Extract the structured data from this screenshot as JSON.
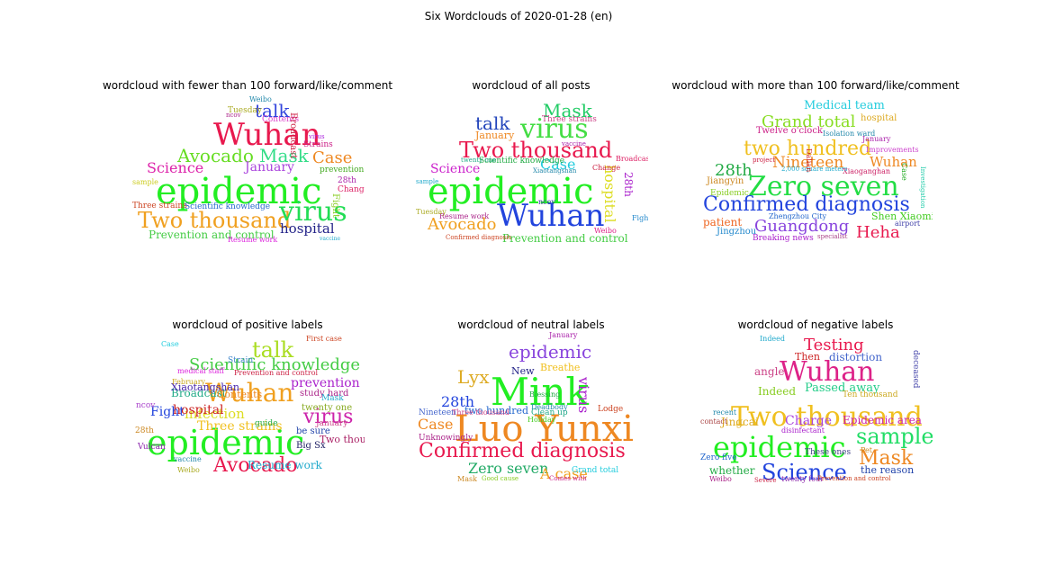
{
  "figure": {
    "title": "Six Wordclouds of 2020-01-28 (en)"
  },
  "chart_data": [
    {
      "type": "wordcloud",
      "title": "wordcloud with fewer than 100 forward/like/comment",
      "words": [
        {
          "text": "epidemic",
          "color": "#22ee22"
        },
        {
          "text": "Wuhan",
          "color": "#e8194e"
        },
        {
          "text": "Two thousand",
          "color": "#f0a020"
        },
        {
          "text": "virus",
          "color": "#22dd55"
        },
        {
          "text": "Avocado",
          "color": "#66dd22"
        },
        {
          "text": "Mask",
          "color": "#33dd88"
        },
        {
          "text": "Case",
          "color": "#ee8822"
        },
        {
          "text": "talk",
          "color": "#3344dd"
        },
        {
          "text": "Science",
          "color": "#dd22aa"
        },
        {
          "text": "January",
          "color": "#aa44dd"
        },
        {
          "text": "hospital",
          "color": "#222288"
        },
        {
          "text": "Prevention and control",
          "color": "#44cc44"
        },
        {
          "text": "Three strains",
          "color": "#cc4422"
        },
        {
          "text": "Scientific knowledge",
          "color": "#2266cc"
        },
        {
          "text": "Contents",
          "color": "#dd44cc"
        },
        {
          "text": "Broadcast",
          "color": "#cc2244"
        },
        {
          "text": "Strains",
          "color": "#cc2288"
        },
        {
          "text": "Fight",
          "color": "#88cc22"
        },
        {
          "text": "28th",
          "color": "#aa22aa"
        },
        {
          "text": "Change",
          "color": "#dd2266"
        },
        {
          "text": "prevention",
          "color": "#44aa22"
        },
        {
          "text": "Resume work",
          "color": "#dd22dd"
        },
        {
          "text": "Tuesday",
          "color": "#aaaa22"
        },
        {
          "text": "Weibo",
          "color": "#2288aa"
        },
        {
          "text": "ncov",
          "color": "#aa2288"
        },
        {
          "text": "sample",
          "color": "#cccc22"
        },
        {
          "text": "vaccine",
          "color": "#22aacc"
        },
        {
          "text": "virus",
          "color": "#aa22dd"
        }
      ]
    },
    {
      "type": "wordcloud",
      "title": "wordcloud of all posts",
      "words": [
        {
          "text": "epidemic",
          "color": "#22ee22"
        },
        {
          "text": "Wuhan",
          "color": "#2244dd"
        },
        {
          "text": "Two thousand",
          "color": "#e8194e"
        },
        {
          "text": "virus",
          "color": "#44dd44"
        },
        {
          "text": "Mask",
          "color": "#22cc66"
        },
        {
          "text": "Avocado",
          "color": "#f0a020"
        },
        {
          "text": "talk",
          "color": "#2244bb"
        },
        {
          "text": "Case",
          "color": "#22ccdd"
        },
        {
          "text": "hospital",
          "color": "#dddd22"
        },
        {
          "text": "Science",
          "color": "#cc22cc"
        },
        {
          "text": "Prevention and control",
          "color": "#44cc44"
        },
        {
          "text": "January",
          "color": "#ee8822"
        },
        {
          "text": "28th",
          "color": "#aa22cc"
        },
        {
          "text": "Three strains",
          "color": "#cc4488"
        },
        {
          "text": "Scientific knowledge",
          "color": "#22aa44"
        },
        {
          "text": "Broadcast",
          "color": "#dd2266"
        },
        {
          "text": "Change",
          "color": "#cc2244"
        },
        {
          "text": "Resume work",
          "color": "#aa2288"
        },
        {
          "text": "Confirmed diagnosis",
          "color": "#cc4422"
        },
        {
          "text": "Weibo",
          "color": "#dd2288"
        },
        {
          "text": "Fight",
          "color": "#2288cc"
        },
        {
          "text": "ncov",
          "color": "#4444aa"
        },
        {
          "text": "vaccine",
          "color": "#aa22aa"
        },
        {
          "text": "twenty one",
          "color": "#22aa88"
        },
        {
          "text": "Tuesday",
          "color": "#aaaa22"
        },
        {
          "text": "Xiaotangshan",
          "color": "#2288aa"
        },
        {
          "text": "sample",
          "color": "#22aacc"
        }
      ]
    },
    {
      "type": "wordcloud",
      "title": "wordcloud with more than 100 forward/like/comment",
      "words": [
        {
          "text": "Zero seven",
          "color": "#22dd44"
        },
        {
          "text": "Confirmed diagnosis",
          "color": "#2244dd"
        },
        {
          "text": "two hundred",
          "color": "#f0c020"
        },
        {
          "text": "Grand total",
          "color": "#88dd22"
        },
        {
          "text": "Guangdong",
          "color": "#8844dd"
        },
        {
          "text": "Nineteen",
          "color": "#ee8822"
        },
        {
          "text": "Wuhan",
          "color": "#ee8822"
        },
        {
          "text": "28th",
          "color": "#22aa44"
        },
        {
          "text": "Heha",
          "color": "#e8194e"
        },
        {
          "text": "Medical team",
          "color": "#22ccdd"
        },
        {
          "text": "hospital",
          "color": "#ddaa22"
        },
        {
          "text": "Twelve o'clock",
          "color": "#cc2288"
        },
        {
          "text": "Shen Xiaoming",
          "color": "#44cc22"
        },
        {
          "text": "Jingzhou",
          "color": "#2288cc"
        },
        {
          "text": "patient",
          "color": "#ee6622"
        },
        {
          "text": "Jiangyin",
          "color": "#cc8822"
        },
        {
          "text": "Xiaoganghan",
          "color": "#cc2266"
        },
        {
          "text": "January",
          "color": "#aa22aa"
        },
        {
          "text": "Epidemic",
          "color": "#88cc22"
        },
        {
          "text": "Zhengzhou City",
          "color": "#2266cc"
        },
        {
          "text": "2,000 square meters",
          "color": "#22aacc"
        },
        {
          "text": "Breaking news",
          "color": "#aa22cc"
        },
        {
          "text": "project",
          "color": "#cc2244"
        },
        {
          "text": "Isolation ward",
          "color": "#2288aa"
        },
        {
          "text": "Improvements",
          "color": "#cc44cc"
        },
        {
          "text": "airport",
          "color": "#4444aa"
        },
        {
          "text": "specialist",
          "color": "#aa4488"
        },
        {
          "text": "Case",
          "color": "#22aa22"
        },
        {
          "text": "Investigation",
          "color": "#22ccaa"
        },
        {
          "text": "Dalian",
          "color": "#cc2222"
        }
      ]
    },
    {
      "type": "wordcloud",
      "title": "wordcloud of positive labels",
      "words": [
        {
          "text": "epidemic",
          "color": "#22ee22"
        },
        {
          "text": "Wuhan",
          "color": "#f0a020"
        },
        {
          "text": "Avocado",
          "color": "#e8194e"
        },
        {
          "text": "virus",
          "color": "#cc22aa"
        },
        {
          "text": "talk",
          "color": "#aadd22"
        },
        {
          "text": "Scientific knowledge",
          "color": "#44cc44"
        },
        {
          "text": "infection",
          "color": "#dddd22"
        },
        {
          "text": "Three strains",
          "color": "#f0c020"
        },
        {
          "text": "hospital",
          "color": "#cc2222"
        },
        {
          "text": "prevention",
          "color": "#aa22cc"
        },
        {
          "text": "Fight",
          "color": "#2244dd"
        },
        {
          "text": "Resume work",
          "color": "#22aacc"
        },
        {
          "text": "Broadcast",
          "color": "#22aa88"
        },
        {
          "text": "Xiaotangshan",
          "color": "#4422aa"
        },
        {
          "text": "Contents",
          "color": "#ee8822"
        },
        {
          "text": "Two thousand",
          "color": "#aa2266"
        },
        {
          "text": "Big Sx",
          "color": "#222266"
        },
        {
          "text": "study hard",
          "color": "#aa2288"
        },
        {
          "text": "twenty one",
          "color": "#88aa22"
        },
        {
          "text": "Strain",
          "color": "#4488cc"
        },
        {
          "text": "be sure",
          "color": "#2244aa"
        },
        {
          "text": "guide",
          "color": "#22aa44"
        },
        {
          "text": "ncov",
          "color": "#aa44cc"
        },
        {
          "text": "28th",
          "color": "#cc8822"
        },
        {
          "text": "January",
          "color": "#cc4488"
        },
        {
          "text": "Mask",
          "color": "#22aacc"
        },
        {
          "text": "Vulcan",
          "color": "#8822aa"
        },
        {
          "text": "February",
          "color": "#ccaa22"
        },
        {
          "text": "First case",
          "color": "#cc4422"
        },
        {
          "text": "vaccine",
          "color": "#2288aa"
        },
        {
          "text": "Prevention and control",
          "color": "#cc2244"
        },
        {
          "text": "medical staff",
          "color": "#dd22dd"
        },
        {
          "text": "Case",
          "color": "#22ccdd"
        },
        {
          "text": "Weibo",
          "color": "#aaaa22"
        }
      ]
    },
    {
      "type": "wordcloud",
      "title": "wordcloud of neutral labels",
      "words": [
        {
          "text": "Luo Yunxi",
          "color": "#ee8822"
        },
        {
          "text": "Mink",
          "color": "#22ee22"
        },
        {
          "text": "Confirmed diagnosis",
          "color": "#e8194e"
        },
        {
          "text": "epidemic",
          "color": "#8844dd"
        },
        {
          "text": "Zero seven",
          "color": "#22aa66"
        },
        {
          "text": "A case",
          "color": "#f0a020"
        },
        {
          "text": "Lyx",
          "color": "#ddaa22"
        },
        {
          "text": "Case",
          "color": "#ee8822"
        },
        {
          "text": "28th",
          "color": "#2244dd"
        },
        {
          "text": "virus",
          "color": "#aa22cc"
        },
        {
          "text": "two hundred",
          "color": "#2266cc"
        },
        {
          "text": "New",
          "color": "#222288"
        },
        {
          "text": "Breathe",
          "color": "#f0c020"
        },
        {
          "text": "Nineteen",
          "color": "#4466cc"
        },
        {
          "text": "Unknowingly",
          "color": "#aa2288"
        },
        {
          "text": "Grand total",
          "color": "#22ccdd"
        },
        {
          "text": "Clean up",
          "color": "#22aa88"
        },
        {
          "text": "Lodge",
          "color": "#cc4422"
        },
        {
          "text": "Holiday",
          "color": "#44cc22"
        },
        {
          "text": "January",
          "color": "#aa22aa"
        },
        {
          "text": "Three thousand",
          "color": "#cc4488"
        },
        {
          "text": "Deadbody",
          "color": "#2288aa"
        },
        {
          "text": "Blessing",
          "color": "#22aa44"
        },
        {
          "text": "Mask",
          "color": "#cc8822"
        },
        {
          "text": "Good cause",
          "color": "#88cc22"
        },
        {
          "text": "Comes with",
          "color": "#cc2288"
        }
      ]
    },
    {
      "type": "wordcloud",
      "title": "wordcloud of negative labels",
      "words": [
        {
          "text": "Two thousand",
          "color": "#f0c020"
        },
        {
          "text": "epidemic",
          "color": "#22ee22"
        },
        {
          "text": "Wuhan",
          "color": "#dd2288"
        },
        {
          "text": "Science",
          "color": "#2244dd"
        },
        {
          "text": "sample",
          "color": "#22dd66"
        },
        {
          "text": "Mask",
          "color": "#ee8822"
        },
        {
          "text": "Testing",
          "color": "#e8194e"
        },
        {
          "text": "Passed away",
          "color": "#22cc88"
        },
        {
          "text": "Charge",
          "color": "#aa44dd"
        },
        {
          "text": "Epidemic area",
          "color": "#cc22aa"
        },
        {
          "text": "distortion",
          "color": "#4466cc"
        },
        {
          "text": "Then",
          "color": "#cc2222"
        },
        {
          "text": "Indeed",
          "color": "#88cc22"
        },
        {
          "text": "angle",
          "color": "#cc4488"
        },
        {
          "text": "Jingcai",
          "color": "#ddaa22"
        },
        {
          "text": "the reason",
          "color": "#2244aa"
        },
        {
          "text": "whether",
          "color": "#22aa44"
        },
        {
          "text": "Ten thousand",
          "color": "#ccaa22"
        },
        {
          "text": "disinfectant",
          "color": "#aa22cc"
        },
        {
          "text": "These ones",
          "color": "#444488"
        },
        {
          "text": "Zero five",
          "color": "#2266cc"
        },
        {
          "text": "twenty four",
          "color": "#8822aa"
        },
        {
          "text": "Prevention and control",
          "color": "#cc4422"
        },
        {
          "text": "Weibo",
          "color": "#aa2288"
        },
        {
          "text": "Severe",
          "color": "#cc2244"
        },
        {
          "text": "Pet",
          "color": "#cc8822"
        },
        {
          "text": "recent",
          "color": "#2288aa"
        },
        {
          "text": "contact",
          "color": "#aa4444"
        },
        {
          "text": "Indeed",
          "color": "#22aacc"
        },
        {
          "text": "deceased",
          "color": "#4444aa"
        }
      ]
    }
  ]
}
